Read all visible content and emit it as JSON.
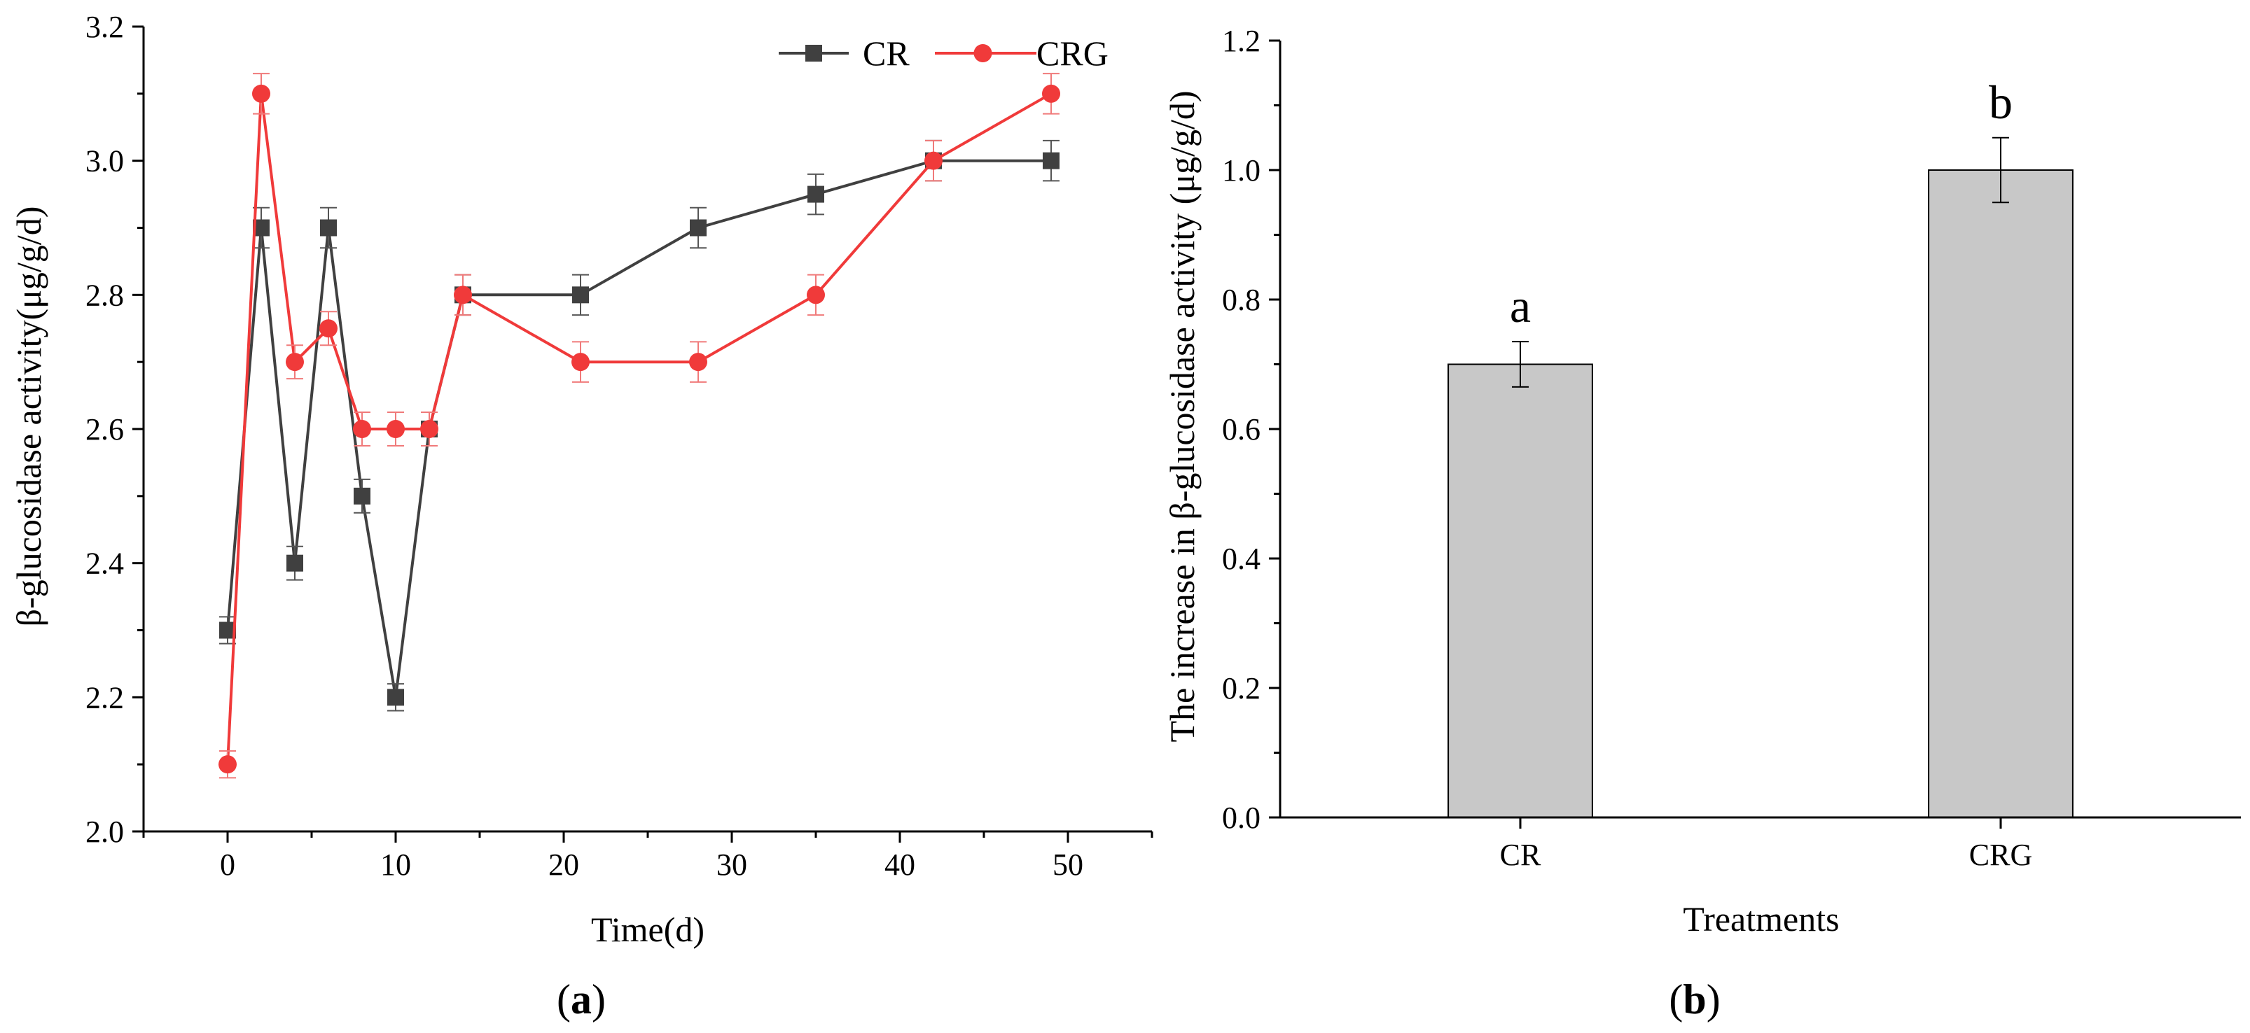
{
  "chart_data": [
    {
      "type": "line",
      "panel_label": "a",
      "xlabel": "Time(d)",
      "ylabel": "β-glucosidase activity(μg/g/d)",
      "xlim": [
        -5,
        55
      ],
      "ylim": [
        2.0,
        3.2
      ],
      "xticks": [
        0,
        10,
        20,
        30,
        40,
        50
      ],
      "xminor": [
        -5,
        5,
        15,
        25,
        35,
        45,
        55
      ],
      "yticks": [
        2.0,
        2.2,
        2.4,
        2.6,
        2.8,
        3.0,
        3.2
      ],
      "ytick_labels": [
        "2.0",
        "2.2",
        "2.4",
        "2.6",
        "2.8",
        "3.0",
        "3.2"
      ],
      "yminor": [
        2.1,
        2.3,
        2.5,
        2.7,
        2.9,
        3.1
      ],
      "legend_position": "top-right",
      "series": [
        {
          "name": "CR",
          "color": "#404040",
          "marker": "square",
          "x": [
            0,
            2,
            4,
            6,
            8,
            10,
            12,
            14,
            21,
            28,
            35,
            42,
            49
          ],
          "values": [
            2.3,
            2.9,
            2.4,
            2.9,
            2.5,
            2.2,
            2.6,
            2.8,
            2.8,
            2.9,
            2.95,
            3.0,
            3.0
          ],
          "errors": [
            0.02,
            0.03,
            0.025,
            0.03,
            0.025,
            0.02,
            0.025,
            0.03,
            0.03,
            0.03,
            0.03,
            0.03,
            0.03
          ]
        },
        {
          "name": "CRG",
          "color": "#f03a3a",
          "marker": "circle",
          "x": [
            0,
            2,
            4,
            6,
            8,
            10,
            12,
            14,
            21,
            28,
            35,
            42,
            49
          ],
          "values": [
            2.1,
            3.1,
            2.7,
            2.75,
            2.6,
            2.6,
            2.6,
            2.8,
            2.7,
            2.7,
            2.8,
            3.0,
            3.1
          ],
          "errors": [
            0.02,
            0.03,
            0.025,
            0.025,
            0.025,
            0.025,
            0.025,
            0.03,
            0.03,
            0.03,
            0.03,
            0.03,
            0.03
          ]
        }
      ]
    },
    {
      "type": "bar",
      "panel_label": "b",
      "xlabel": "Treatments",
      "ylabel": "The increase in β-glucosidase activity (μg/g/d)",
      "ylim": [
        0.0,
        1.2
      ],
      "yticks": [
        0.0,
        0.2,
        0.4,
        0.6,
        0.8,
        1.0,
        1.2
      ],
      "ytick_labels": [
        "0.0",
        "0.2",
        "0.4",
        "0.6",
        "0.8",
        "1.0",
        "1.2"
      ],
      "yminor": [
        0.1,
        0.3,
        0.5,
        0.7,
        0.9,
        1.1
      ],
      "categories": [
        "CR",
        "CRG"
      ],
      "values": [
        0.7,
        1.0
      ],
      "errors": [
        0.035,
        0.05
      ],
      "significance_letters": [
        "a",
        "b"
      ],
      "bar_color": "#c8c8c8"
    }
  ]
}
